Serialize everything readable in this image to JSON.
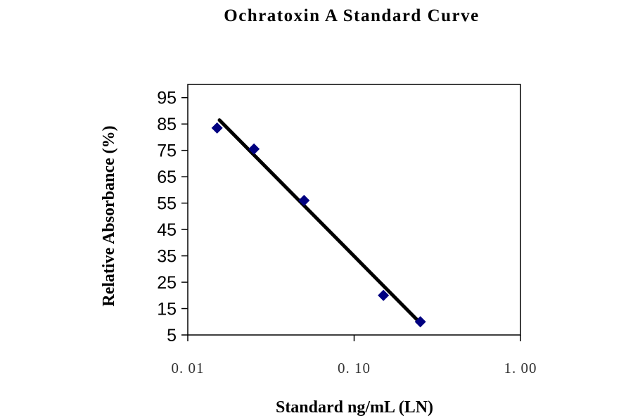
{
  "chart_data": {
    "type": "scatter",
    "title": "Ochratoxin A Standard Curve",
    "xlabel": "Standard ng/mL (LN)",
    "ylabel": "Relative Absorbance (%)",
    "x_scale": "log",
    "xlim": [
      0.01,
      1.0
    ],
    "ylim": [
      5,
      100
    ],
    "x_ticks": [
      "0.01",
      "0.10",
      "1.00"
    ],
    "x_tick_values": [
      0.01,
      0.1,
      1.0
    ],
    "y_ticks": [
      "5",
      "15",
      "25",
      "35",
      "45",
      "55",
      "65",
      "75",
      "85",
      "95"
    ],
    "grid": false,
    "legend": "none",
    "series": [
      {
        "marker": "diamond",
        "color": "#000080",
        "x": [
          0.015,
          0.025,
          0.05,
          0.15,
          0.25
        ],
        "y": [
          83.5,
          75.5,
          56,
          20,
          10
        ]
      }
    ],
    "trendline": {
      "color": "#000000",
      "x": [
        0.0155,
        0.25
      ],
      "y": [
        86.5,
        9.5
      ]
    }
  }
}
